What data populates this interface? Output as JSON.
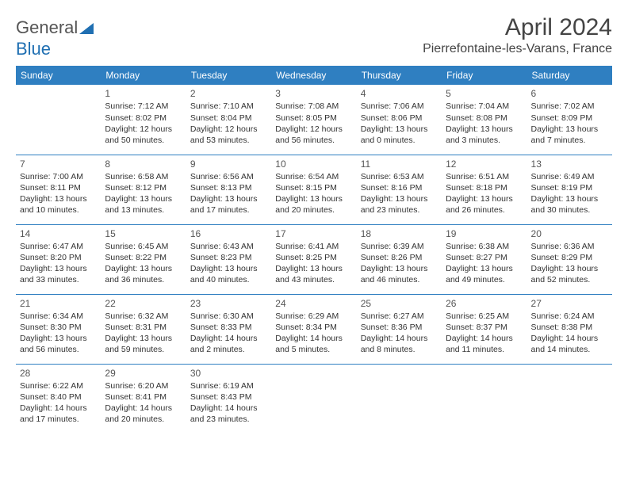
{
  "logo": {
    "textGray": "General",
    "textBlue": "Blue"
  },
  "title": "April 2024",
  "location": "Pierrefontaine-les-Varans, France",
  "colors": {
    "header_bg": "#2f7fc1",
    "header_text": "#ffffff",
    "border": "#2f7fc1",
    "body_text": "#333333",
    "title_text": "#444444",
    "logo_gray": "#555555",
    "logo_blue": "#1f6fb2",
    "page_bg": "#ffffff"
  },
  "days": [
    "Sunday",
    "Monday",
    "Tuesday",
    "Wednesday",
    "Thursday",
    "Friday",
    "Saturday"
  ],
  "weeks": [
    [
      null,
      {
        "n": "1",
        "sr": "Sunrise: 7:12 AM",
        "ss": "Sunset: 8:02 PM",
        "d1": "Daylight: 12 hours",
        "d2": "and 50 minutes."
      },
      {
        "n": "2",
        "sr": "Sunrise: 7:10 AM",
        "ss": "Sunset: 8:04 PM",
        "d1": "Daylight: 12 hours",
        "d2": "and 53 minutes."
      },
      {
        "n": "3",
        "sr": "Sunrise: 7:08 AM",
        "ss": "Sunset: 8:05 PM",
        "d1": "Daylight: 12 hours",
        "d2": "and 56 minutes."
      },
      {
        "n": "4",
        "sr": "Sunrise: 7:06 AM",
        "ss": "Sunset: 8:06 PM",
        "d1": "Daylight: 13 hours",
        "d2": "and 0 minutes."
      },
      {
        "n": "5",
        "sr": "Sunrise: 7:04 AM",
        "ss": "Sunset: 8:08 PM",
        "d1": "Daylight: 13 hours",
        "d2": "and 3 minutes."
      },
      {
        "n": "6",
        "sr": "Sunrise: 7:02 AM",
        "ss": "Sunset: 8:09 PM",
        "d1": "Daylight: 13 hours",
        "d2": "and 7 minutes."
      }
    ],
    [
      {
        "n": "7",
        "sr": "Sunrise: 7:00 AM",
        "ss": "Sunset: 8:11 PM",
        "d1": "Daylight: 13 hours",
        "d2": "and 10 minutes."
      },
      {
        "n": "8",
        "sr": "Sunrise: 6:58 AM",
        "ss": "Sunset: 8:12 PM",
        "d1": "Daylight: 13 hours",
        "d2": "and 13 minutes."
      },
      {
        "n": "9",
        "sr": "Sunrise: 6:56 AM",
        "ss": "Sunset: 8:13 PM",
        "d1": "Daylight: 13 hours",
        "d2": "and 17 minutes."
      },
      {
        "n": "10",
        "sr": "Sunrise: 6:54 AM",
        "ss": "Sunset: 8:15 PM",
        "d1": "Daylight: 13 hours",
        "d2": "and 20 minutes."
      },
      {
        "n": "11",
        "sr": "Sunrise: 6:53 AM",
        "ss": "Sunset: 8:16 PM",
        "d1": "Daylight: 13 hours",
        "d2": "and 23 minutes."
      },
      {
        "n": "12",
        "sr": "Sunrise: 6:51 AM",
        "ss": "Sunset: 8:18 PM",
        "d1": "Daylight: 13 hours",
        "d2": "and 26 minutes."
      },
      {
        "n": "13",
        "sr": "Sunrise: 6:49 AM",
        "ss": "Sunset: 8:19 PM",
        "d1": "Daylight: 13 hours",
        "d2": "and 30 minutes."
      }
    ],
    [
      {
        "n": "14",
        "sr": "Sunrise: 6:47 AM",
        "ss": "Sunset: 8:20 PM",
        "d1": "Daylight: 13 hours",
        "d2": "and 33 minutes."
      },
      {
        "n": "15",
        "sr": "Sunrise: 6:45 AM",
        "ss": "Sunset: 8:22 PM",
        "d1": "Daylight: 13 hours",
        "d2": "and 36 minutes."
      },
      {
        "n": "16",
        "sr": "Sunrise: 6:43 AM",
        "ss": "Sunset: 8:23 PM",
        "d1": "Daylight: 13 hours",
        "d2": "and 40 minutes."
      },
      {
        "n": "17",
        "sr": "Sunrise: 6:41 AM",
        "ss": "Sunset: 8:25 PM",
        "d1": "Daylight: 13 hours",
        "d2": "and 43 minutes."
      },
      {
        "n": "18",
        "sr": "Sunrise: 6:39 AM",
        "ss": "Sunset: 8:26 PM",
        "d1": "Daylight: 13 hours",
        "d2": "and 46 minutes."
      },
      {
        "n": "19",
        "sr": "Sunrise: 6:38 AM",
        "ss": "Sunset: 8:27 PM",
        "d1": "Daylight: 13 hours",
        "d2": "and 49 minutes."
      },
      {
        "n": "20",
        "sr": "Sunrise: 6:36 AM",
        "ss": "Sunset: 8:29 PM",
        "d1": "Daylight: 13 hours",
        "d2": "and 52 minutes."
      }
    ],
    [
      {
        "n": "21",
        "sr": "Sunrise: 6:34 AM",
        "ss": "Sunset: 8:30 PM",
        "d1": "Daylight: 13 hours",
        "d2": "and 56 minutes."
      },
      {
        "n": "22",
        "sr": "Sunrise: 6:32 AM",
        "ss": "Sunset: 8:31 PM",
        "d1": "Daylight: 13 hours",
        "d2": "and 59 minutes."
      },
      {
        "n": "23",
        "sr": "Sunrise: 6:30 AM",
        "ss": "Sunset: 8:33 PM",
        "d1": "Daylight: 14 hours",
        "d2": "and 2 minutes."
      },
      {
        "n": "24",
        "sr": "Sunrise: 6:29 AM",
        "ss": "Sunset: 8:34 PM",
        "d1": "Daylight: 14 hours",
        "d2": "and 5 minutes."
      },
      {
        "n": "25",
        "sr": "Sunrise: 6:27 AM",
        "ss": "Sunset: 8:36 PM",
        "d1": "Daylight: 14 hours",
        "d2": "and 8 minutes."
      },
      {
        "n": "26",
        "sr": "Sunrise: 6:25 AM",
        "ss": "Sunset: 8:37 PM",
        "d1": "Daylight: 14 hours",
        "d2": "and 11 minutes."
      },
      {
        "n": "27",
        "sr": "Sunrise: 6:24 AM",
        "ss": "Sunset: 8:38 PM",
        "d1": "Daylight: 14 hours",
        "d2": "and 14 minutes."
      }
    ],
    [
      {
        "n": "28",
        "sr": "Sunrise: 6:22 AM",
        "ss": "Sunset: 8:40 PM",
        "d1": "Daylight: 14 hours",
        "d2": "and 17 minutes."
      },
      {
        "n": "29",
        "sr": "Sunrise: 6:20 AM",
        "ss": "Sunset: 8:41 PM",
        "d1": "Daylight: 14 hours",
        "d2": "and 20 minutes."
      },
      {
        "n": "30",
        "sr": "Sunrise: 6:19 AM",
        "ss": "Sunset: 8:43 PM",
        "d1": "Daylight: 14 hours",
        "d2": "and 23 minutes."
      },
      null,
      null,
      null,
      null
    ]
  ]
}
